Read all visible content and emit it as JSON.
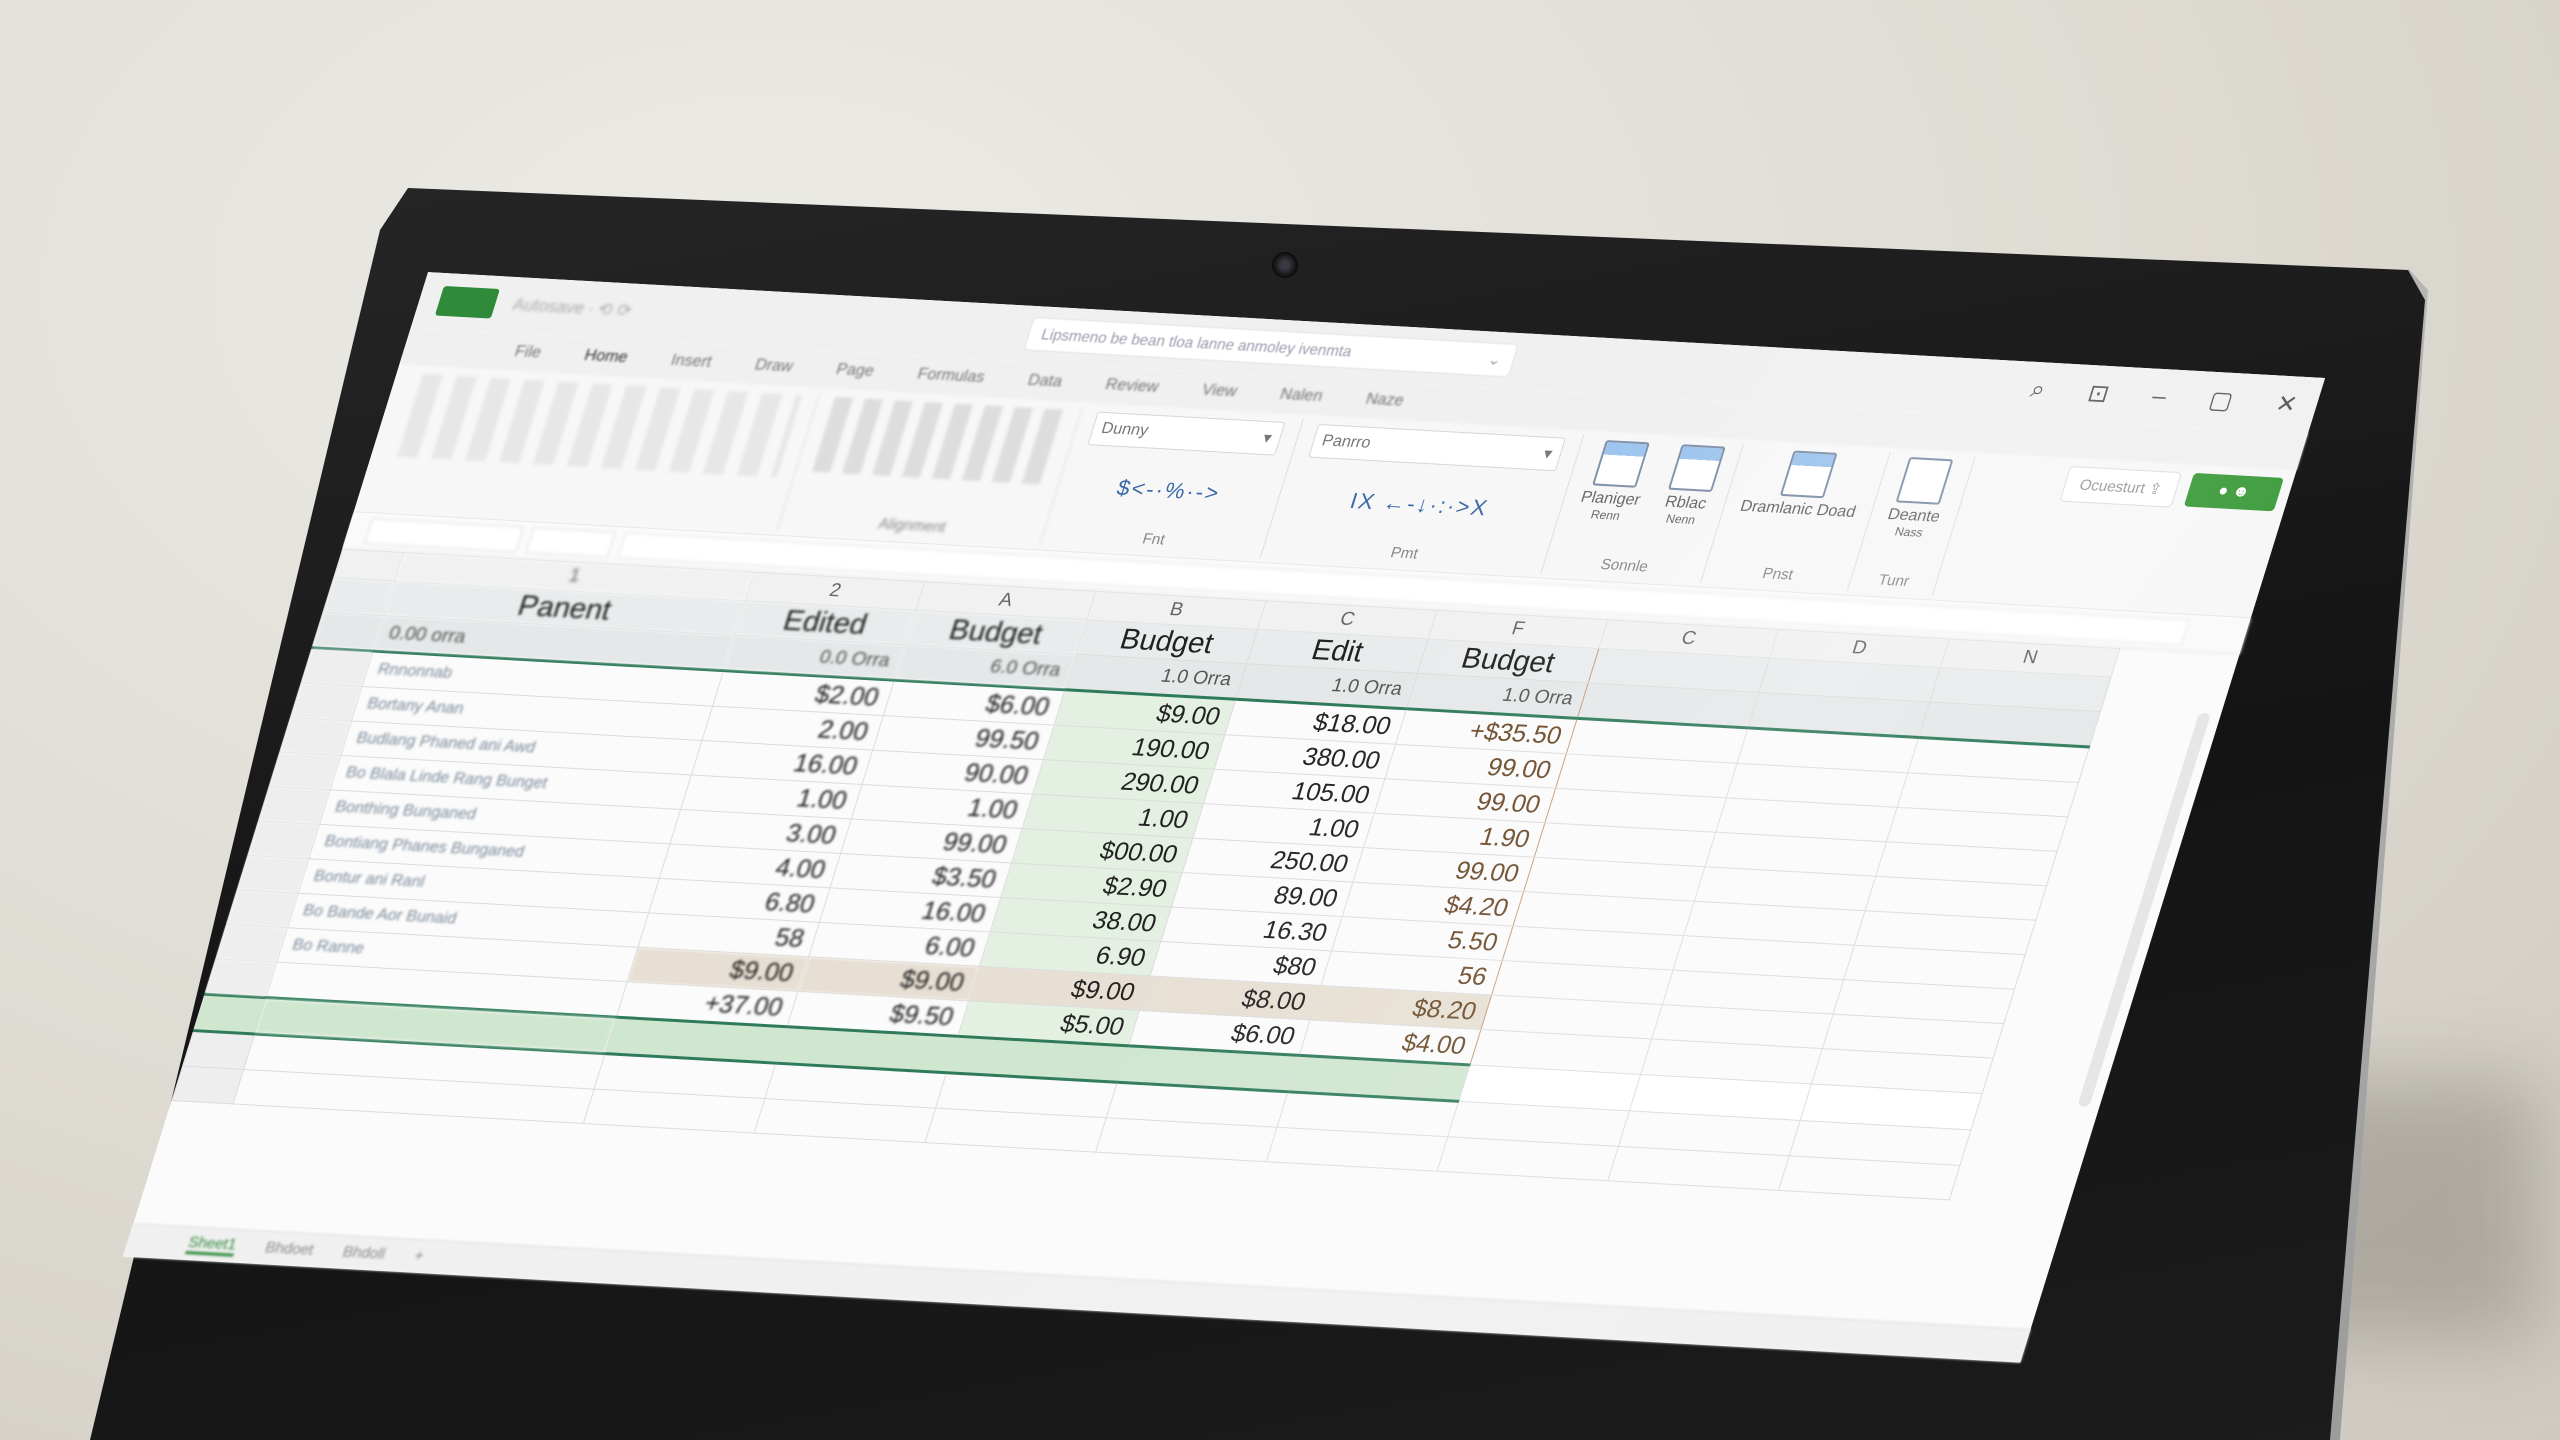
{
  "app": {
    "title_search": "Lipsmeno be bean tloa lanne anmoley ivenmta",
    "quick_access": "Autosave  ∙  ⟲  ⟳",
    "tabs": [
      "File",
      "Home",
      "Insert",
      "Draw",
      "Page",
      "Formulas",
      "Data",
      "Review",
      "View",
      "Nalen",
      "Naze"
    ],
    "window_icons": [
      "search-icon",
      "ribbon-display-icon",
      "minimize-icon",
      "maximize-icon",
      "close-icon"
    ],
    "accent_color": "#2f8a3a"
  },
  "ribbon": {
    "number_format_dropdown": "Dunny",
    "style_dropdown": "Panrro",
    "number_symbols": "$<-·%·->",
    "style_symbols": "IX ←-↓·:·>X",
    "groups": [
      {
        "label": "Alignment"
      },
      {
        "label": "Fnt"
      },
      {
        "label": "Pmt"
      },
      {
        "label": "Sonnle",
        "buttons": [
          {
            "label": "Planiger",
            "sub": "Renn"
          },
          {
            "label": "Rblac",
            "sub": "Nenn"
          }
        ]
      },
      {
        "label": "Pnst",
        "buttons": [
          {
            "label": "Dramlanic Doad"
          }
        ]
      },
      {
        "label": "Tunr",
        "buttons": [
          {
            "label": "Deante",
            "sub": "Nass"
          }
        ]
      }
    ],
    "share_label": "Ocuesturt",
    "green_button_icon": "people-icon"
  },
  "sheet": {
    "column_letters": [
      "1",
      "2",
      "A",
      "B",
      "C",
      "F",
      "C",
      "D",
      "N"
    ],
    "headers": [
      "Panent",
      "Edited",
      "Budget",
      "Budget",
      "Edit",
      "Budget"
    ],
    "subheaders": [
      "0.00 orra",
      "0.0 Orra",
      "6.0 Orra",
      "1.0 Orra",
      "1.0 Orra",
      "1.0 Orra"
    ],
    "rows": [
      {
        "name": "Rnnonnab",
        "values": [
          "$2.00",
          "$6.00",
          "$9.00",
          "$18.00",
          "+$35.50"
        ]
      },
      {
        "name": "Bortany Anan",
        "values": [
          "2.00",
          "99.50",
          "190.00",
          "380.00",
          "99.00"
        ]
      },
      {
        "name": "Budlang Phaned ani Awd",
        "values": [
          "16.00",
          "90.00",
          "290.00",
          "105.00",
          "99.00"
        ]
      },
      {
        "name": "Bo Blala Linde Rang Bunget",
        "values": [
          "1.00",
          "1.00",
          "1.00",
          "1.00",
          "1.90"
        ]
      },
      {
        "name": "Bonthing Bunganed",
        "values": [
          "3.00",
          "99.00",
          "$00.00",
          "250.00",
          "99.00"
        ]
      },
      {
        "name": "Bontiang Phanes Bunganed",
        "values": [
          "4.00",
          "$3.50",
          "$2.90",
          "89.00",
          "$4.20"
        ]
      },
      {
        "name": "Bontur ani Ranl",
        "values": [
          "6.80",
          "16.00",
          "38.00",
          "16.30",
          "5.50"
        ]
      },
      {
        "name": "Bo Bande Aor Bunaid",
        "values": [
          "58",
          "6.00",
          "6.90",
          "$80",
          "56"
        ]
      },
      {
        "name": "Bo Ranne",
        "values": [
          "$9.00",
          "$9.00",
          "$9.00",
          "$8.00",
          "$8.20"
        ],
        "highlight": true
      },
      {
        "name": "",
        "values": [
          "+37.00",
          "$9.50",
          "$5.00",
          "$6.00",
          "$4.00"
        ]
      }
    ],
    "sheet_tabs": [
      "Sheet1",
      "Bhdoet",
      "Bhdoll",
      "+"
    ],
    "colors": {
      "highlight_column": "#e4f1e2",
      "total_row": "#cfe6cf",
      "highlight_row": "#e7dfd3",
      "border_accent": "#2f7a5a"
    }
  }
}
